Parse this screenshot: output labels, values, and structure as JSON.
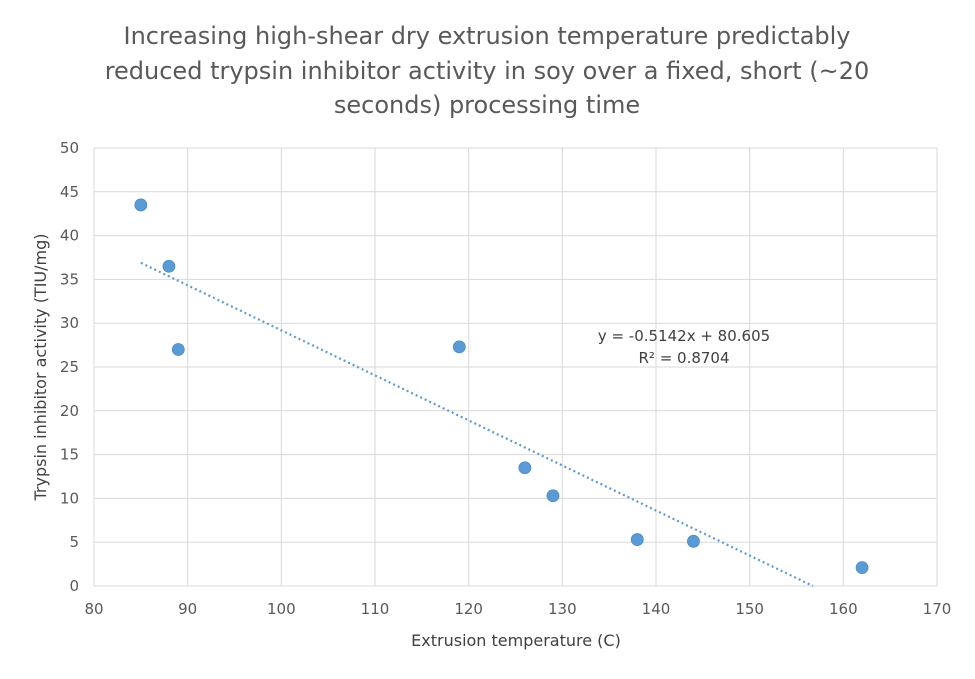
{
  "chart_data": {
    "type": "scatter",
    "title_lines": [
      "Increasing high-shear dry extrusion temperature predictably",
      "reduced trypsin inhibitor activity in soy over a fixed, short (~20",
      "seconds) processing time"
    ],
    "xlabel": "Extrusion temperature (C)",
    "ylabel": "Trypsin inhibitor activity (TIU/mg)",
    "xlim": [
      80,
      170
    ],
    "ylim": [
      0,
      50
    ],
    "x_ticks": [
      "80",
      "90",
      "100",
      "110",
      "120",
      "130",
      "140",
      "150",
      "160",
      "170"
    ],
    "y_ticks": [
      "0",
      "5",
      "10",
      "15",
      "20",
      "25",
      "30",
      "35",
      "40",
      "45",
      "50"
    ],
    "grid": true,
    "points": [
      {
        "x": 85,
        "y": 43.5
      },
      {
        "x": 88,
        "y": 36.5
      },
      {
        "x": 89,
        "y": 27.0
      },
      {
        "x": 119,
        "y": 27.3
      },
      {
        "x": 126,
        "y": 13.5
      },
      {
        "x": 129,
        "y": 10.3
      },
      {
        "x": 138,
        "y": 5.3
      },
      {
        "x": 144,
        "y": 5.1
      },
      {
        "x": 162,
        "y": 2.1
      }
    ],
    "trendline": {
      "type": "linear",
      "slope": -0.5142,
      "intercept": 80.605,
      "x_start": 85,
      "equation": "y = -0.5142x + 80.605",
      "r_squared": "R² = 0.8704"
    },
    "colors": {
      "points": "#5b9bd5",
      "trendline": "#5b9bd5",
      "grid": "#d9d9d9"
    }
  }
}
